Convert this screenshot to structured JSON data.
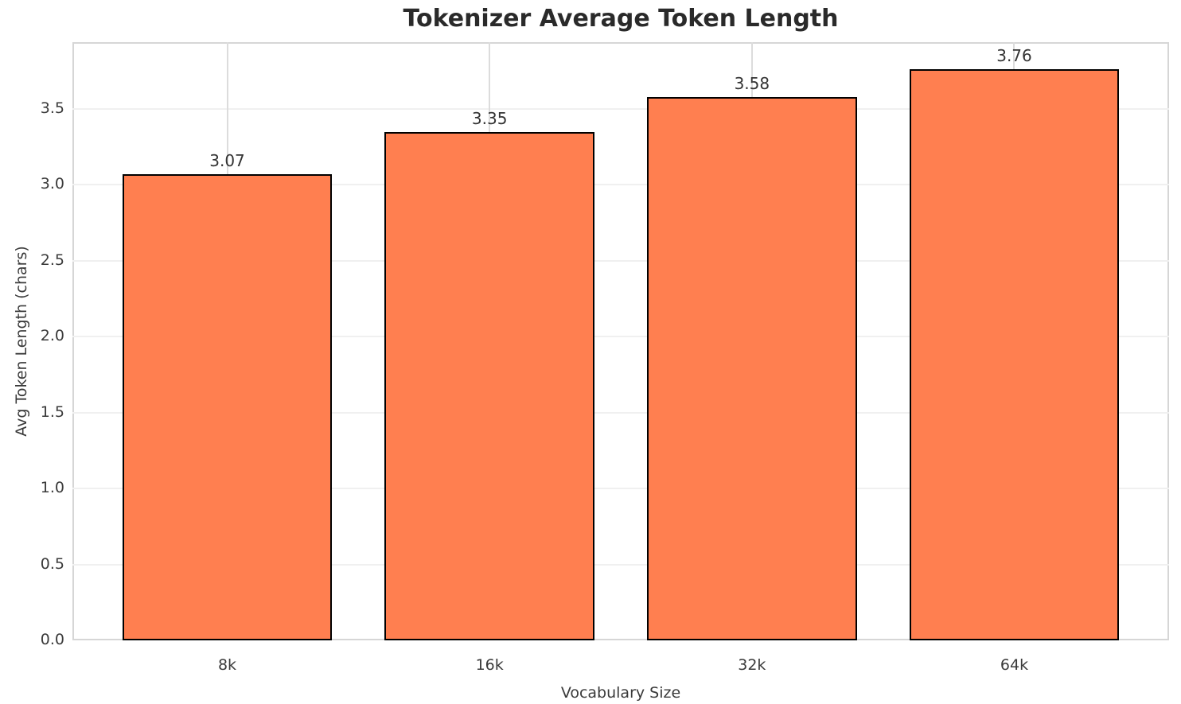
{
  "chart_data": {
    "type": "bar",
    "title": "Tokenizer Average Token Length",
    "xlabel": "Vocabulary Size",
    "ylabel": "Avg Token Length (chars)",
    "categories": [
      "8k",
      "16k",
      "32k",
      "64k"
    ],
    "values": [
      3.07,
      3.35,
      3.58,
      3.76
    ],
    "value_labels": [
      "3.07",
      "3.35",
      "3.58",
      "3.76"
    ],
    "ytick_labels": [
      "0.0",
      "0.5",
      "1.0",
      "1.5",
      "2.0",
      "2.5",
      "3.0",
      "3.5"
    ],
    "ytick_values": [
      0,
      0.5,
      1,
      1.5,
      2,
      2.5,
      3,
      3.5
    ],
    "ylim": [
      0,
      3.94
    ],
    "grid": true,
    "legend_position": "none",
    "bar_color": "#FF7F50",
    "bar_edge_color": "#000000",
    "background_color": "#FFFFFF",
    "title_color": "#2A2A2A",
    "text_color": "#3A3A3A"
  }
}
